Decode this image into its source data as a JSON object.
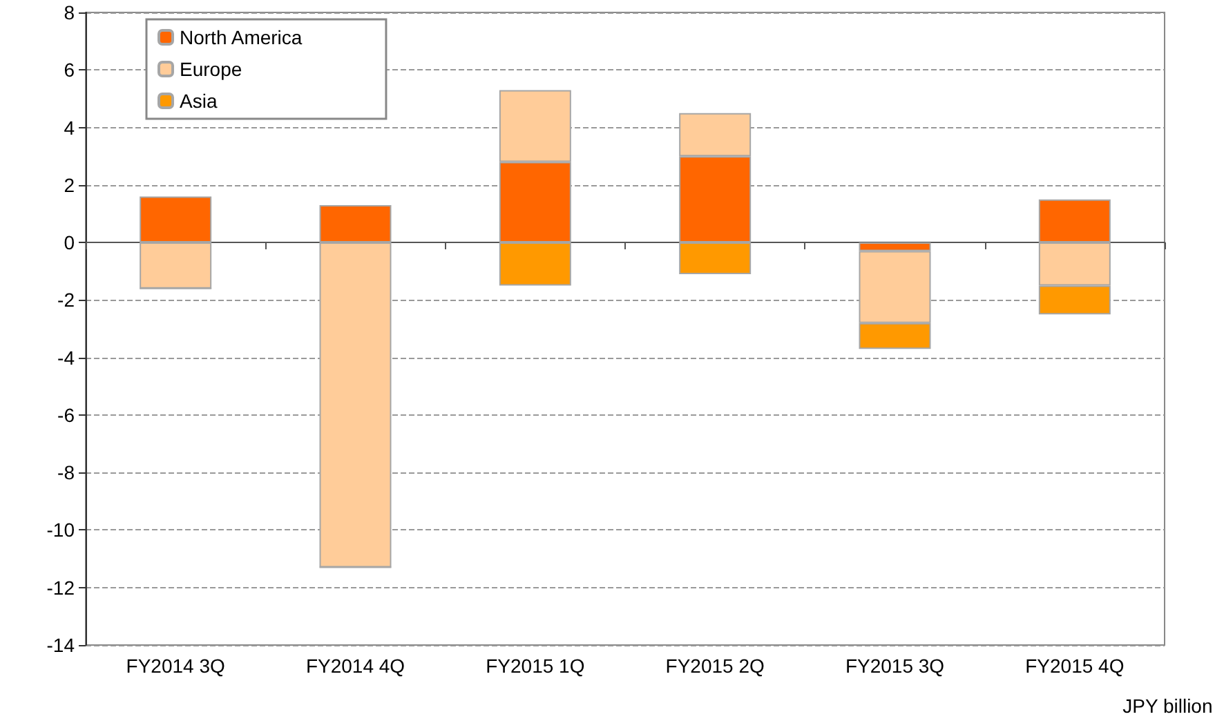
{
  "chart_data": {
    "type": "bar",
    "stacked": true,
    "categories": [
      "FY2014 3Q",
      "FY2014 4Q",
      "FY2015 1Q",
      "FY2015 2Q",
      "FY2015 3Q",
      "FY2015 4Q"
    ],
    "series": [
      {
        "name": "North America",
        "color": "#ff6600",
        "values": [
          1.6,
          1.3,
          2.8,
          3.0,
          -0.3,
          1.5
        ]
      },
      {
        "name": "Europe",
        "color": "#ffcc99",
        "values": [
          -1.6,
          -11.3,
          2.5,
          1.5,
          -2.5,
          -1.5
        ]
      },
      {
        "name": "Asia",
        "color": "#ff9900",
        "values": [
          0,
          0,
          -1.5,
          -1.1,
          -0.9,
          -1.0
        ]
      }
    ],
    "ylim": [
      -14,
      8
    ],
    "yticks": [
      -14,
      -12,
      -10,
      -8,
      -6,
      -4,
      -2,
      0,
      2,
      4,
      6,
      8
    ],
    "grid": "y",
    "legend": "top left",
    "annotations": [
      "JPY billion"
    ]
  }
}
